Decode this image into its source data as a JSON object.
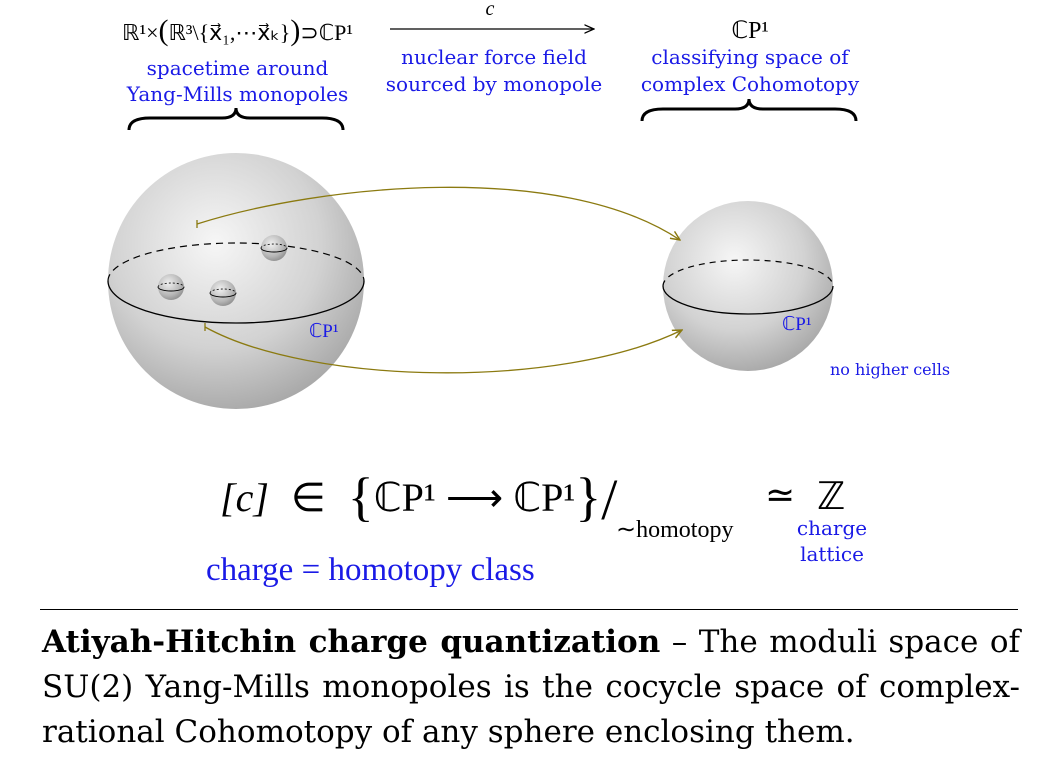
{
  "top_left": {
    "formula_prefix": "ℝ¹×",
    "formula_inner": "ℝ³\\{x⃗₁,⋯x⃗ₖ}",
    "formula_suffix": "⊃ℂP¹",
    "line1": "spacetime around",
    "line2": "Yang-Mills monopoles"
  },
  "top_arrow": {
    "label": "c",
    "line1": "nuclear force field",
    "line2": "sourced by monopole"
  },
  "top_right": {
    "formula": "ℂP¹",
    "line1": "classifying space of",
    "line2": "complex Cohomotopy"
  },
  "left_sphere_label": "ℂP¹",
  "right_sphere_label": "ℂP¹",
  "no_higher_cells": "no higher cells",
  "equation": {
    "lhs": "[c]",
    "in": "∈",
    "set_left": "ℂP¹",
    "set_arrow": "⟶",
    "set_right": "ℂP¹",
    "quotient": "∼homotopy",
    "simeq": "≃",
    "result": "ℤ",
    "charge_lattice_1": "charge",
    "charge_lattice_2": "lattice",
    "charge_eq": "charge = homotopy class"
  },
  "caption": {
    "bold": "Atiyah-Hitchin charge quantization",
    "rest": " – The moduli space of SU(2) Yang-Mills monopoles is the cocycle space of complex-rational Cohomotopy of any sphere enclosing them."
  },
  "colors": {
    "blue": "#1a1ae6",
    "arrow": "#8b7a10"
  }
}
